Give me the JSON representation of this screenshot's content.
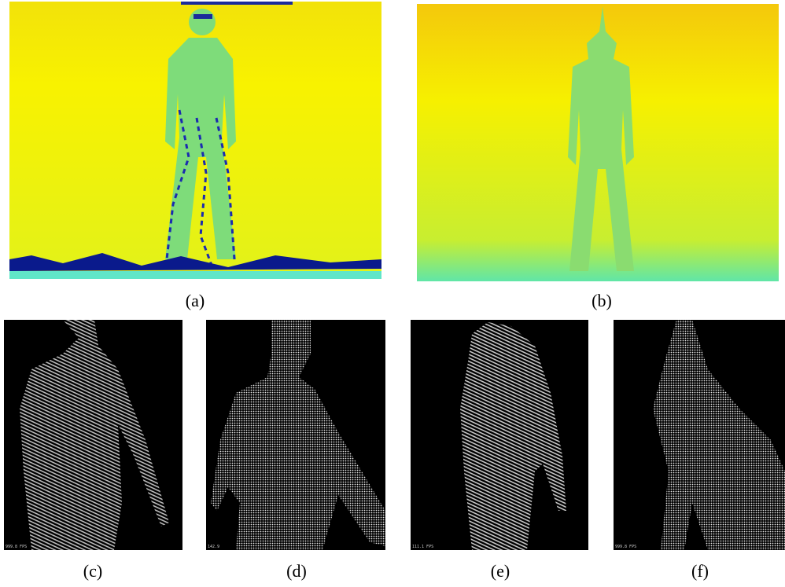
{
  "figure": {
    "panels": [
      {
        "label": "(a)"
      },
      {
        "label": "(b)"
      },
      {
        "label": "(c)",
        "overlay": "999.8 FPS"
      },
      {
        "label": "(d)",
        "overlay": "142.9"
      },
      {
        "label": "(e)",
        "overlay": "111.1 FPS"
      },
      {
        "label": "(f)",
        "overlay": "999.8 FPS"
      }
    ]
  }
}
